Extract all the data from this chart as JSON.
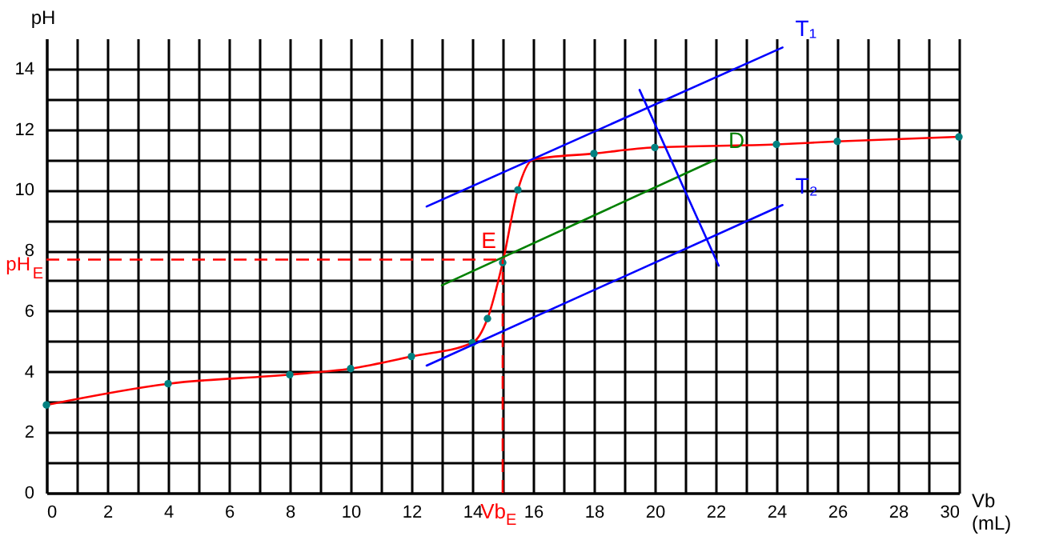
{
  "chart_data": {
    "type": "scatter",
    "xlabel": "Vb (mL)",
    "ylabel": "pH",
    "xlim": [
      0,
      30
    ],
    "ylim": [
      0,
      15
    ],
    "xticks": [
      0,
      {
        "value": 1,
        "label": null
      },
      2,
      {
        "value": 3,
        "label": null
      },
      4,
      {
        "value": 5,
        "label": null
      },
      6,
      {
        "value": 7,
        "label": null
      },
      8,
      {
        "value": 9,
        "label": null
      },
      10,
      {
        "value": 11,
        "label": null
      },
      12,
      {
        "value": 13,
        "label": null
      },
      14,
      {
        "value": 15,
        "label": null
      },
      16,
      {
        "value": 17,
        "label": null
      },
      18,
      {
        "value": 19,
        "label": null
      },
      20,
      {
        "value": 21,
        "label": null
      },
      22,
      {
        "value": 23,
        "label": null
      },
      24,
      {
        "value": 25,
        "label": null
      },
      26,
      {
        "value": 27,
        "label": null
      },
      28,
      {
        "value": 29,
        "label": null
      },
      30
    ],
    "yticks": [
      0,
      {
        "value": 1,
        "label": null
      },
      2,
      {
        "value": 3,
        "label": null
      },
      4,
      {
        "value": 5,
        "label": null
      },
      6,
      {
        "value": 7,
        "label": null
      },
      8,
      {
        "value": 9,
        "label": null
      },
      10,
      {
        "value": 11,
        "label": null
      },
      12,
      {
        "value": 13,
        "label": null
      },
      14
    ],
    "grid": true,
    "legend": false,
    "series": [
      {
        "type": "line",
        "color": "#ff0000",
        "x": [
          0,
          4,
          8,
          10,
          12,
          14,
          14.5,
          15,
          15.5,
          16,
          18,
          20,
          24,
          26,
          30
        ],
        "values": [
          2.9,
          3.6,
          3.9,
          4.1,
          4.5,
          4.95,
          5.75,
          7.6,
          10,
          11,
          11.2,
          11.4,
          11.5,
          11.6,
          11.75
        ],
        "marker": "none"
      },
      {
        "color": "#008080",
        "x": [
          0,
          4,
          8,
          10,
          12,
          14,
          14.5,
          15,
          15.5,
          18,
          20,
          24,
          26,
          30
        ],
        "values": [
          2.9,
          3.6,
          3.9,
          4.1,
          4.5,
          4.95,
          5.75,
          7.6,
          10,
          11.2,
          11.4,
          11.5,
          11.6,
          11.75
        ],
        "marker": "circle"
      },
      {
        "type": "line",
        "name": "T₁",
        "color": "#0000ff",
        "x": [
          12.5,
          24.2
        ],
        "values": [
          9.45,
          14.7
        ],
        "marker": "none"
      },
      {
        "type": "line",
        "name": "T₂",
        "color": "#0000ff",
        "x": [
          12.5,
          24.2
        ],
        "values": [
          4.2,
          9.5
        ],
        "marker": "none"
      },
      {
        "type": "line",
        "name": "D",
        "color": "#008000",
        "x": [
          13,
          22
        ],
        "values": [
          6.85,
          11.0
        ],
        "marker": "none"
      },
      {
        "type": "line",
        "color": "#0000ff",
        "x": [
          19.5,
          22.1
        ],
        "values": [
          13.3,
          7.5
        ],
        "marker": "none"
      }
    ],
    "ref_lines": [
      {
        "axis": "y",
        "value": 7.7,
        "label": "pH$_{E}$",
        "color": "#ff0000",
        "line_style": "dashed"
      },
      {
        "axis": "x",
        "value": 15,
        "label": "Vb$_{E}$",
        "color": "#ff0000",
        "line_style": "dashed"
      }
    ],
    "annotations": [
      {
        "text": "E",
        "x": 15,
        "y": 7.7
      }
    ]
  }
}
